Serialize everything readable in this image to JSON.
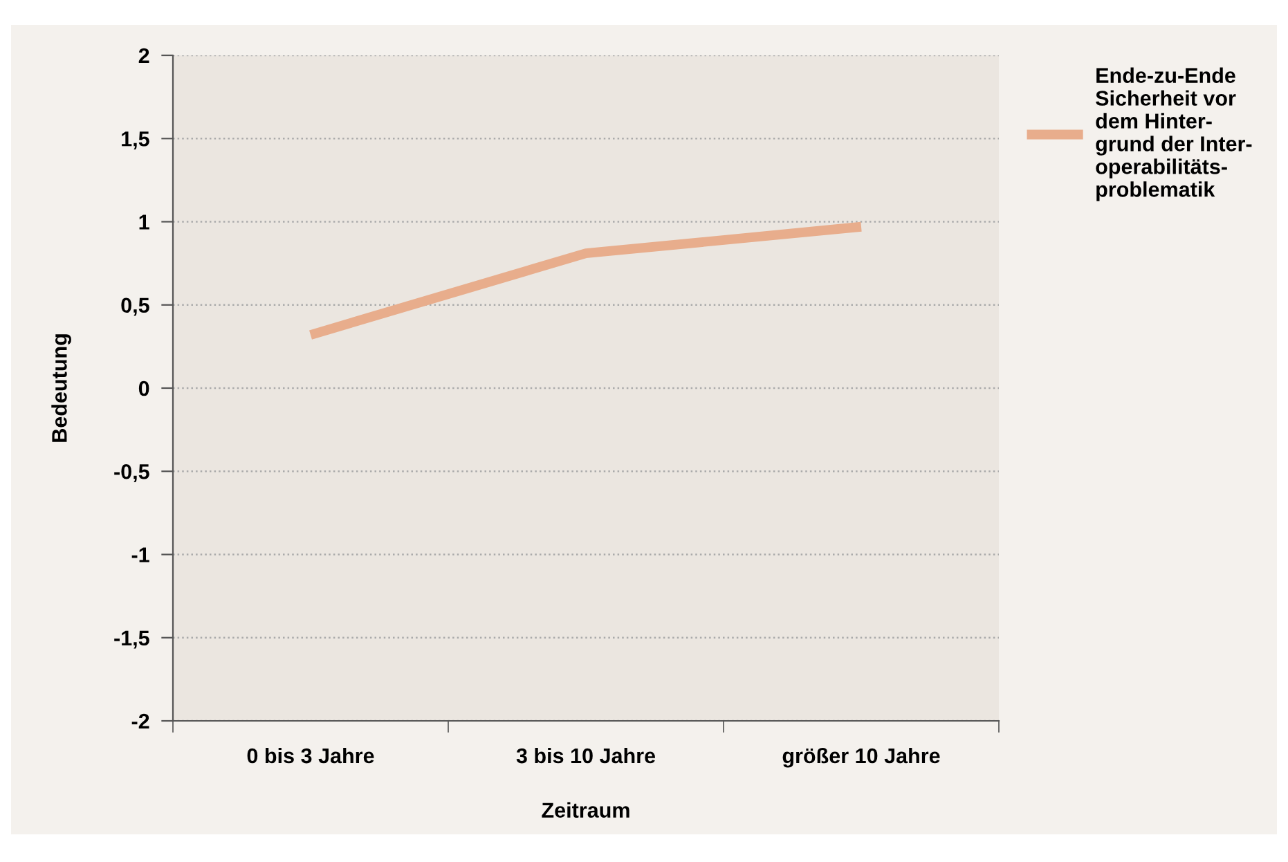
{
  "chart_data": {
    "type": "line",
    "xlabel": "Zeitraum",
    "ylabel": "Bedeutung",
    "categories": [
      "0 bis 3 Jahre",
      "3 bis 10 Jahre",
      "größer 10 Jahre"
    ],
    "series": [
      {
        "name": "Ende-zu-Ende\nSicherheit vor\ndem Hinter-\ngrund der Inter-\noperabilitäts-\nproblematik",
        "color": "#e8ad8c",
        "values": [
          0.32,
          0.81,
          0.97
        ]
      }
    ],
    "ylim": [
      -2,
      2
    ],
    "yticks": [
      {
        "value": -2,
        "label": "-2"
      },
      {
        "value": -1.5,
        "label": "-1,5"
      },
      {
        "value": -1,
        "label": "-1"
      },
      {
        "value": -0.5,
        "label": "-0,5"
      },
      {
        "value": 0,
        "label": "0"
      },
      {
        "value": 0.5,
        "label": "0,5"
      },
      {
        "value": 1,
        "label": "1"
      },
      {
        "value": 1.5,
        "label": "1,5"
      },
      {
        "value": 2,
        "label": "2"
      }
    ],
    "grid": "y",
    "legend": "top right",
    "marker": "none",
    "line_style": "solid"
  }
}
